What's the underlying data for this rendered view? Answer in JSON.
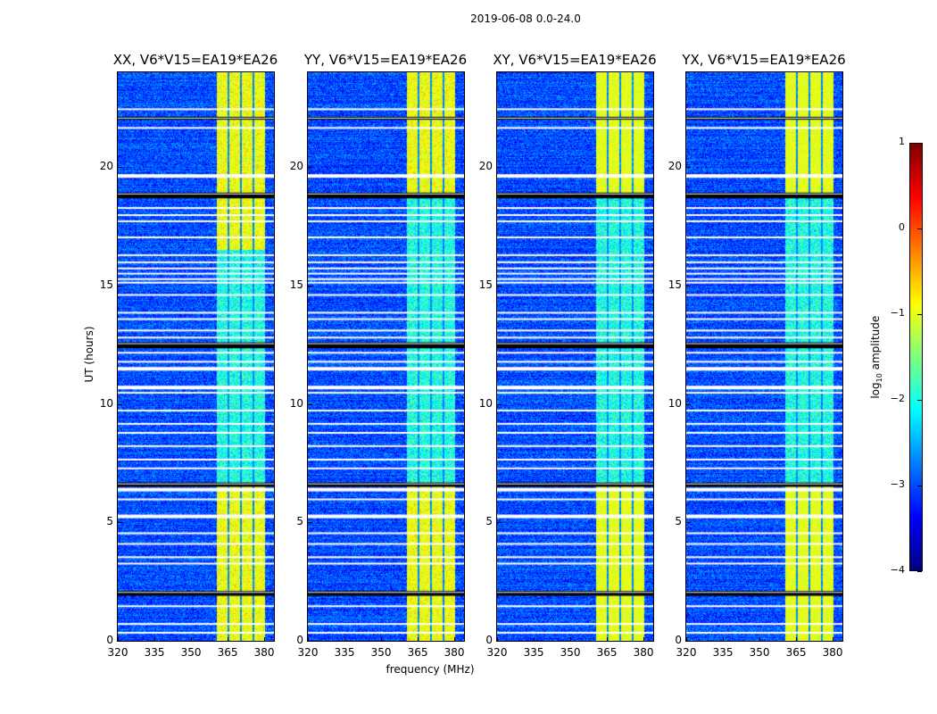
{
  "chart_data": {
    "type": "heatmap",
    "title": "2019-06-08 0.0-24.0",
    "xlabel": "frequency (MHz)",
    "ylabel": "UT (hours)",
    "xlim": [
      320,
      384
    ],
    "ylim": [
      0,
      24
    ],
    "xticks": [
      320,
      335,
      350,
      365,
      380
    ],
    "yticks": [
      0,
      5,
      10,
      15,
      20
    ],
    "panels": [
      {
        "title": "XX, V6*V15=EA19*EA26"
      },
      {
        "title": "YY, V6*V15=EA19*EA26"
      },
      {
        "title": "XY, V6*V15=EA19*EA26"
      },
      {
        "title": "YX, V6*V15=EA19*EA26"
      }
    ],
    "colorbar": {
      "label_main": "log",
      "label_sub": "10",
      "label_rest": " amplitude",
      "range": [
        -4,
        1
      ],
      "ticks": [
        "1",
        "0",
        "−1",
        "−2",
        "−3",
        "−4"
      ],
      "colormap": "jet"
    },
    "background_level": -3.0,
    "band_MHz": [
      360.7,
      380.4
    ],
    "band_gaps_MHz": [
      365.5,
      370.5,
      375.6
    ],
    "band_level_bright": -1.0,
    "band_level_dim": -2.0,
    "bright_hours": [
      [
        0,
        6.5
      ],
      [
        18.9,
        24
      ]
    ],
    "flagged_black_hours": [
      [
        22.0,
        22.12
      ],
      [
        18.68,
        18.92
      ],
      [
        12.35,
        12.6
      ],
      [
        6.5,
        6.68
      ],
      [
        1.9,
        2.1
      ]
    ],
    "flagged_white_hours": [
      22.44,
      21.65,
      19.66,
      18.27,
      17.97,
      17.71,
      17.03,
      16.28,
      15.98,
      15.72,
      15.5,
      15.27,
      15.12,
      14.6,
      13.85,
      13.58,
      13.1,
      12.8,
      12.16,
      11.78,
      11.52,
      10.73,
      10.47,
      9.72,
      9.16,
      8.78,
      8.22,
      7.65,
      7.28,
      6.42,
      5.97,
      5.29,
      4.54,
      4.09,
      3.53,
      3.26,
      1.46,
      0.71,
      0.34
    ]
  }
}
